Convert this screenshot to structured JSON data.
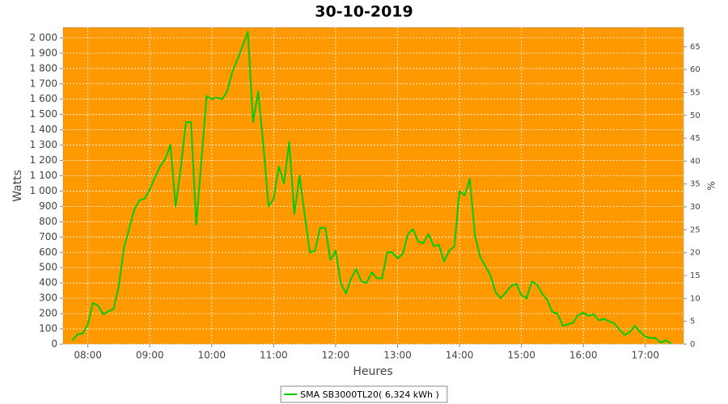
{
  "chart_data": {
    "type": "line",
    "title": "30-10-2019",
    "xlabel": "Heures",
    "ylabel": "Watts",
    "y2label": "%",
    "background": "#ff9900",
    "grid": true,
    "legend": "bottom",
    "x": [
      "07:45",
      "07:50",
      "07:55",
      "08:00",
      "08:05",
      "08:10",
      "08:15",
      "08:20",
      "08:25",
      "08:30",
      "08:35",
      "08:40",
      "08:45",
      "08:50",
      "08:55",
      "09:00",
      "09:05",
      "09:10",
      "09:15",
      "09:20",
      "09:25",
      "09:30",
      "09:35",
      "09:40",
      "09:45",
      "09:50",
      "09:55",
      "10:00",
      "10:05",
      "10:10",
      "10:15",
      "10:20",
      "10:25",
      "10:30",
      "10:35",
      "10:40",
      "10:45",
      "10:50",
      "10:55",
      "11:00",
      "11:05",
      "11:10",
      "11:15",
      "11:20",
      "11:25",
      "11:30",
      "11:35",
      "11:40",
      "11:45",
      "11:50",
      "11:55",
      "12:00",
      "12:05",
      "12:10",
      "12:15",
      "12:20",
      "12:25",
      "12:30",
      "12:35",
      "12:40",
      "12:45",
      "12:50",
      "12:55",
      "13:00",
      "13:05",
      "13:10",
      "13:15",
      "13:20",
      "13:25",
      "13:30",
      "13:35",
      "13:40",
      "13:45",
      "13:50",
      "13:55",
      "14:00",
      "14:05",
      "14:10",
      "14:15",
      "14:20",
      "14:25",
      "14:30",
      "14:35",
      "14:40",
      "14:45",
      "14:50",
      "14:55",
      "15:00",
      "15:05",
      "15:10",
      "15:15",
      "15:20",
      "15:25",
      "15:30",
      "15:35",
      "15:40",
      "15:45",
      "15:50",
      "15:55",
      "16:00",
      "16:05",
      "16:10",
      "16:15",
      "16:20",
      "16:25",
      "16:30",
      "16:35",
      "16:40",
      "16:45",
      "16:50",
      "16:55",
      "17:00",
      "17:05",
      "17:10",
      "17:15",
      "17:20",
      "17:25"
    ],
    "series": [
      {
        "name": "SMA SB3000TL20( 6,324 kWh )",
        "color": "#00cc00",
        "values": [
          25,
          65,
          70,
          130,
          270,
          250,
          195,
          215,
          230,
          380,
          630,
          755,
          880,
          940,
          950,
          1010,
          1090,
          1160,
          1210,
          1300,
          900,
          1150,
          1450,
          1450,
          780,
          1200,
          1620,
          1600,
          1610,
          1600,
          1650,
          1780,
          1860,
          1950,
          2040,
          1450,
          1650,
          1300,
          900,
          950,
          1160,
          1050,
          1320,
          850,
          1100,
          850,
          600,
          610,
          760,
          760,
          550,
          610,
          400,
          330,
          430,
          490,
          410,
          400,
          470,
          430,
          430,
          600,
          600,
          560,
          590,
          720,
          750,
          670,
          660,
          720,
          640,
          650,
          540,
          610,
          640,
          1000,
          970,
          1080,
          710,
          570,
          510,
          450,
          340,
          300,
          340,
          380,
          395,
          320,
          300,
          410,
          390,
          330,
          290,
          210,
          200,
          120,
          130,
          140,
          190,
          205,
          185,
          195,
          155,
          165,
          150,
          135,
          95,
          60,
          80,
          120,
          80,
          50,
          40,
          40,
          10,
          25,
          5
        ]
      }
    ],
    "xlim": [
      "07:36",
      "17:37"
    ],
    "xticks": [
      "08:00",
      "09:00",
      "10:00",
      "11:00",
      "12:00",
      "13:00",
      "14:00",
      "15:00",
      "16:00",
      "17:00"
    ],
    "ylim": [
      0,
      2068
    ],
    "yticks": [
      0,
      100,
      200,
      300,
      400,
      500,
      600,
      700,
      800,
      900,
      {
        "value": 1000,
        "label": "1 000"
      },
      {
        "value": 1100,
        "label": "1 100"
      },
      {
        "value": 1200,
        "label": "1 200"
      },
      {
        "value": 1300,
        "label": "1 300"
      },
      {
        "value": 1400,
        "label": "1 400"
      },
      {
        "value": 1500,
        "label": "1 500"
      },
      {
        "value": 1600,
        "label": "1 600"
      },
      {
        "value": 1700,
        "label": "1 700"
      },
      {
        "value": 1800,
        "label": "1 800"
      },
      {
        "value": 1900,
        "label": "1 900"
      },
      {
        "value": 2000,
        "label": "2 000"
      }
    ],
    "y2lim": [
      0,
      69.2
    ],
    "y2ticks": [
      0,
      5,
      10,
      15,
      20,
      25,
      30,
      35,
      40,
      45,
      50,
      55,
      60,
      65
    ]
  }
}
